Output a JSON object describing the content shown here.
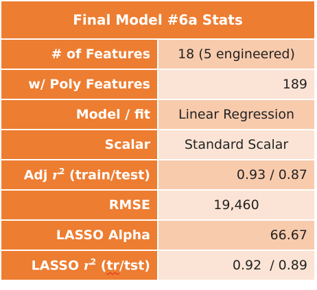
{
  "title": "Final Model #6a Stats",
  "rows": [
    {
      "label": "# of Features",
      "value": "18 (5 engineered)"
    },
    {
      "label": "w/ Poly Features",
      "value": "189"
    },
    {
      "label": "Model / fit",
      "value": "Linear Regression"
    },
    {
      "label": "Scalar",
      "value": "Standard Scalar"
    },
    {
      "label_prefix": "Adj",
      "label_var": "r",
      "label_exp": "2",
      "label_suffix": "(train/test)",
      "value": "0.93 / 0.87"
    },
    {
      "label": "RMSE",
      "value": "19,460"
    },
    {
      "label": "LASSO Alpha",
      "value": "66.67"
    },
    {
      "label_prefix": "LASSO",
      "label_var": "r",
      "label_exp": "2",
      "label_suffix_open": "(",
      "label_suffix_word": "tr",
      "label_suffix_close": "/tst)",
      "value": "0.92  / 0.89"
    }
  ],
  "colors": {
    "header_bg": "#ED7D31",
    "label_bg": "#ED7D31",
    "value_bg_dark": "#F8CBAD",
    "value_bg_light": "#FBE4D5"
  }
}
